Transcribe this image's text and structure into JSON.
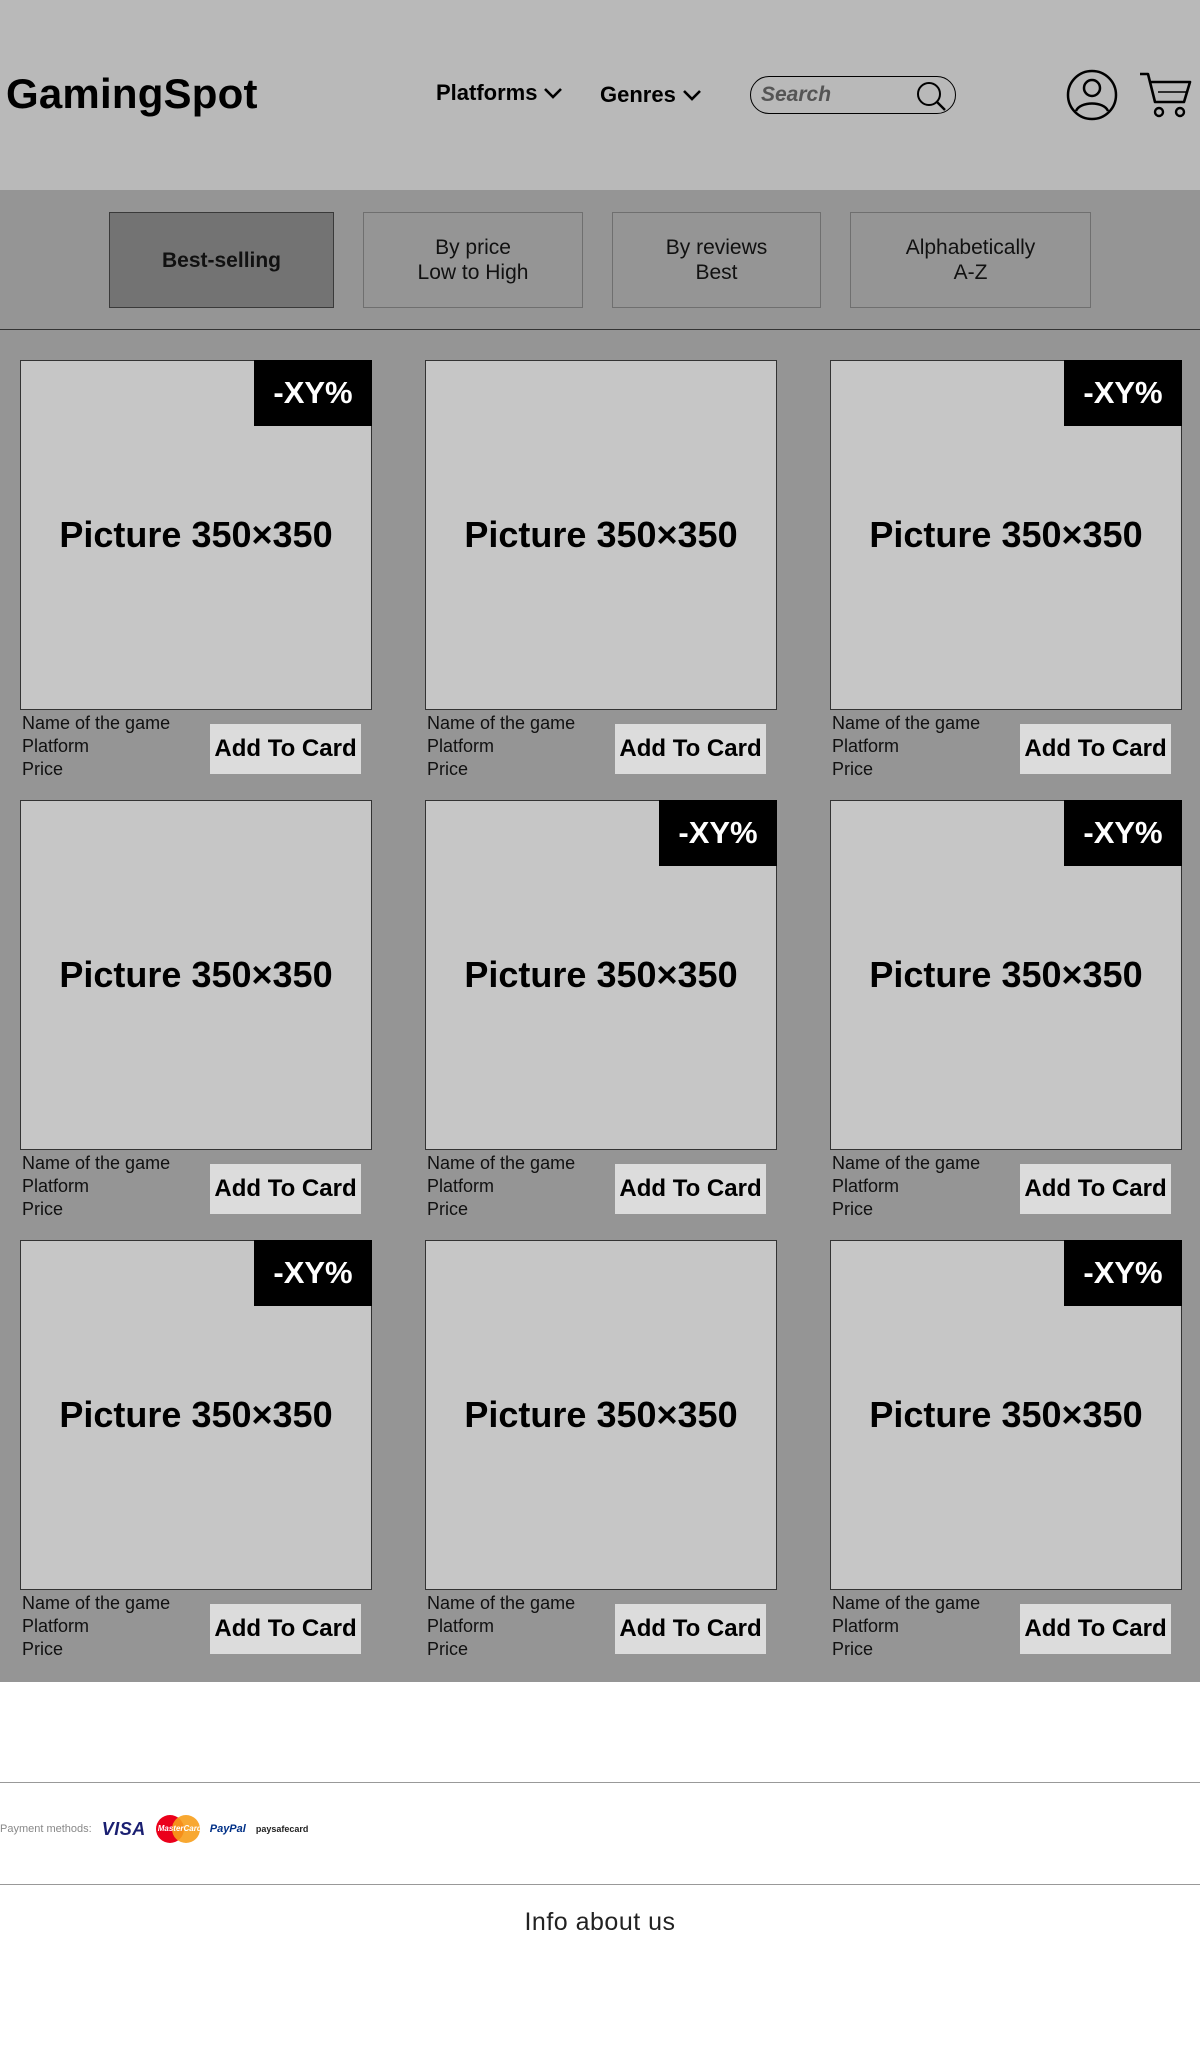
{
  "header": {
    "logo": "GamingSpot",
    "nav": [
      {
        "label": "Platforms"
      },
      {
        "label": "Genres"
      }
    ],
    "search_placeholder": "Search"
  },
  "sort": {
    "options": [
      {
        "label": "Best-selling",
        "active": true
      },
      {
        "label": "By price\nLow to High",
        "active": false
      },
      {
        "label": "By reviews\nBest",
        "active": false
      },
      {
        "label": "Alphabetically\nA-Z",
        "active": false
      }
    ]
  },
  "products": [
    {
      "picture": "Picture 350×350",
      "badge": "-XY%",
      "name": "Name of the game",
      "platform": "Platform",
      "price": "Price",
      "button": "Add To Card"
    },
    {
      "picture": "Picture 350×350",
      "badge": "",
      "name": "Name of the game",
      "platform": "Platform",
      "price": "Price",
      "button": "Add To Card"
    },
    {
      "picture": "Picture 350×350",
      "badge": "-XY%",
      "name": "Name of the game",
      "platform": "Platform",
      "price": "Price",
      "button": "Add To Card"
    },
    {
      "picture": "Picture 350×350",
      "badge": "",
      "name": "Name of the game",
      "platform": "Platform",
      "price": "Price",
      "button": "Add To Card"
    },
    {
      "picture": "Picture 350×350",
      "badge": "-XY%",
      "name": "Name of the game",
      "platform": "Platform",
      "price": "Price",
      "button": "Add To Card"
    },
    {
      "picture": "Picture 350×350",
      "badge": "-XY%",
      "name": "Name of the game",
      "platform": "Platform",
      "price": "Price",
      "button": "Add To Card"
    },
    {
      "picture": "Picture 350×350",
      "badge": "-XY%",
      "name": "Name of the game",
      "platform": "Platform",
      "price": "Price",
      "button": "Add To Card"
    },
    {
      "picture": "Picture 350×350",
      "badge": "",
      "name": "Name of the game",
      "platform": "Platform",
      "price": "Price",
      "button": "Add To Card"
    },
    {
      "picture": "Picture 350×350",
      "badge": "-XY%",
      "name": "Name of the game",
      "platform": "Platform",
      "price": "Price",
      "button": "Add To Card"
    }
  ],
  "footer": {
    "payment_label": "Payment methods:",
    "payment_logos": [
      {
        "name": "visa-logo",
        "text": "VISA"
      },
      {
        "name": "mastercard-logo",
        "text": "MasterCard"
      },
      {
        "name": "paypal-logo",
        "text": "PayPal"
      },
      {
        "name": "paysafecard-logo",
        "text": "paysafecard"
      }
    ],
    "info": "Info about us"
  },
  "colors": {
    "header_bg": "#b9b9b9",
    "content_bg": "#959595",
    "picture_bg": "#c6c6c6",
    "badge_bg": "#000000",
    "button_bg": "#dcdcdc"
  }
}
